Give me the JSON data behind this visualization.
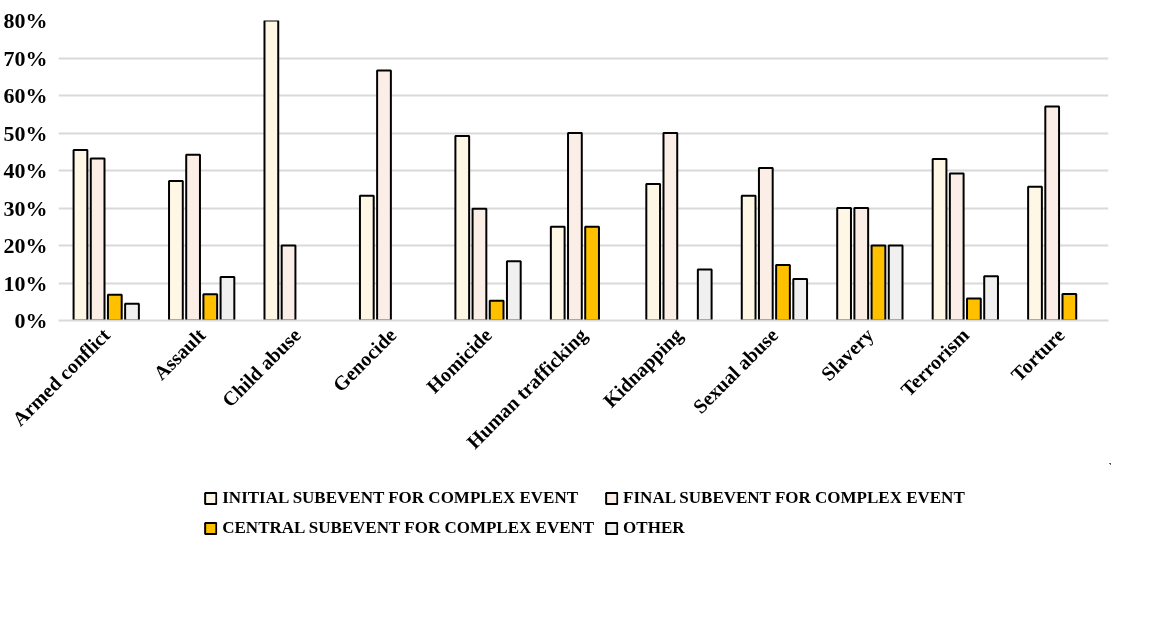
{
  "chart_data": {
    "type": "bar",
    "categories": [
      "Armed conflict",
      "Assault",
      "Child abuse",
      "Genocide",
      "Homicide",
      "Human trafficking",
      "Kidnapping",
      "Sexual abuse",
      "Slavery",
      "Terrorism",
      "Torture"
    ],
    "series": [
      {
        "name": "INITIAL SUBEVENT FOR COMPLEX EVENT",
        "color": "#fff7e6",
        "values": [
          45.5,
          37.2,
          80,
          33.3,
          49.2,
          25,
          36.4,
          33.3,
          30,
          43.1,
          35.7
        ]
      },
      {
        "name": "FINAL SUBEVENT FOR COMPLEX EVENT",
        "color": "#fbeee6",
        "values": [
          43.2,
          44.2,
          20,
          66.7,
          29.8,
          50,
          50,
          40.7,
          30,
          39.2,
          57.1
        ]
      },
      {
        "name": "CENTRAL SUBEVENT FOR COMPLEX EVENT",
        "color": "#ffc000",
        "values": [
          6.9,
          7.0,
          null,
          null,
          5.3,
          25,
          null,
          14.8,
          20,
          5.9,
          7.1
        ]
      },
      {
        "name": "OTHER",
        "color": "#f0f0f0",
        "values": [
          4.5,
          11.6,
          null,
          null,
          15.8,
          null,
          13.6,
          11.1,
          20,
          11.8,
          null
        ]
      }
    ],
    "ylim": [
      0,
      80
    ],
    "yticks": [
      {
        "value": 0,
        "label": "0%"
      },
      {
        "value": 10,
        "label": "10%"
      },
      {
        "value": 20,
        "label": "20%"
      },
      {
        "value": 30,
        "label": "30%"
      },
      {
        "value": 40,
        "label": "40%"
      },
      {
        "value": 50,
        "label": "50%"
      },
      {
        "value": 60,
        "label": "60%"
      },
      {
        "value": 70,
        "label": "70%"
      },
      {
        "value": 80,
        "label": "80%"
      }
    ],
    "grid": "y",
    "legend": "bottom"
  }
}
